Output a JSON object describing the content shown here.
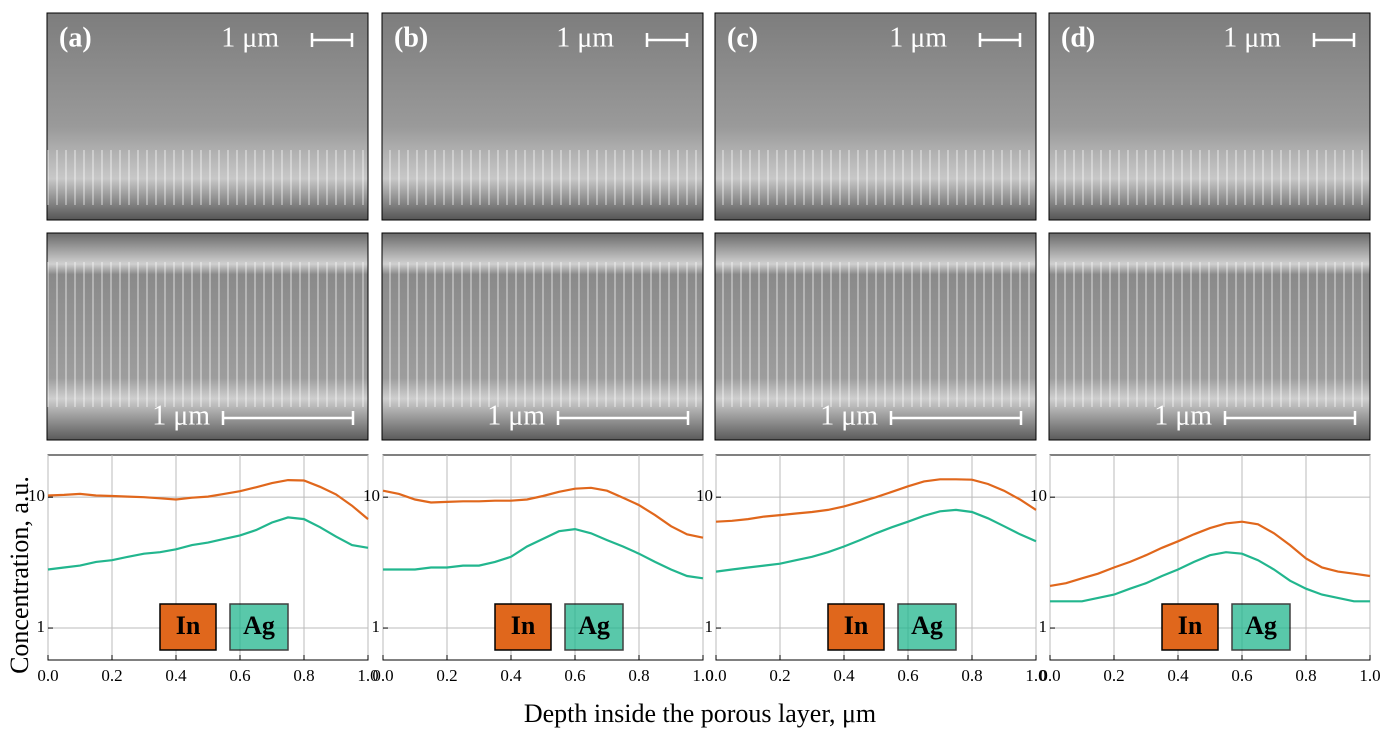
{
  "figure": {
    "ylabel": "Concentration, a.u.",
    "xlabel": "Depth inside the porous layer, μm"
  },
  "panels": [
    {
      "label": "(a)",
      "top_scale": "1 μm",
      "bottom_scale": "1 μm"
    },
    {
      "label": "(b)",
      "top_scale": "1 μm",
      "bottom_scale": "1 μm"
    },
    {
      "label": "(c)",
      "top_scale": "1 μm",
      "bottom_scale": "1 μm"
    },
    {
      "label": "(d)",
      "top_scale": "1 μm",
      "bottom_scale": "1 μm"
    }
  ],
  "chart_data": [
    {
      "type": "line",
      "log_y": true,
      "grid": true,
      "x": [
        0,
        0.05,
        0.1,
        0.15,
        0.2,
        0.25,
        0.3,
        0.35,
        0.4,
        0.45,
        0.5,
        0.55,
        0.6,
        0.65,
        0.7,
        0.75,
        0.8,
        0.85,
        0.9,
        0.95,
        1.0
      ],
      "xlim": [
        0,
        1
      ],
      "xticks": [
        {
          "value": 0,
          "label": "0.0"
        },
        {
          "value": 0.2,
          "label": "0.2"
        },
        {
          "value": 0.4,
          "label": "0.4"
        },
        {
          "value": 0.6,
          "label": "0.6"
        },
        {
          "value": 0.8,
          "label": "0.8"
        },
        {
          "value": 1,
          "label": "1.0"
        }
      ],
      "ylim": [
        0.57,
        21
      ],
      "yticks": [
        1,
        10
      ],
      "series": [
        {
          "name": "In",
          "color": "#e0671c",
          "values": [
            10.3,
            10.4,
            10.6,
            10.3,
            10.2,
            10.1,
            10.0,
            9.8,
            9.6,
            9.9,
            10.1,
            10.6,
            11.1,
            11.9,
            12.8,
            13.5,
            13.4,
            12.0,
            10.5,
            8.6,
            6.8
          ]
        },
        {
          "name": "Ag",
          "color": "#22b68e",
          "values": [
            2.8,
            2.9,
            3.0,
            3.2,
            3.3,
            3.5,
            3.7,
            3.8,
            4.0,
            4.3,
            4.5,
            4.8,
            5.1,
            5.6,
            6.4,
            7.0,
            6.8,
            5.9,
            5.0,
            4.3,
            4.1
          ]
        }
      ]
    },
    {
      "type": "line",
      "log_y": true,
      "grid": true,
      "x": [
        0,
        0.05,
        0.1,
        0.15,
        0.2,
        0.25,
        0.3,
        0.35,
        0.4,
        0.45,
        0.5,
        0.55,
        0.6,
        0.65,
        0.7,
        0.75,
        0.8,
        0.85,
        0.9,
        0.95,
        1.0
      ],
      "xlim": [
        0,
        1
      ],
      "xticks": [
        {
          "value": 0,
          "label": "0.0"
        },
        {
          "value": 0.2,
          "label": "0.2"
        },
        {
          "value": 0.4,
          "label": "0.4"
        },
        {
          "value": 0.6,
          "label": "0.6"
        },
        {
          "value": 0.8,
          "label": "0.8"
        },
        {
          "value": 1,
          "label": "1.0"
        }
      ],
      "ylim": [
        0.57,
        21
      ],
      "yticks": [
        1,
        10
      ],
      "series": [
        {
          "name": "In",
          "color": "#e0671c",
          "values": [
            11.2,
            10.6,
            9.6,
            9.1,
            9.2,
            9.3,
            9.3,
            9.4,
            9.4,
            9.6,
            10.2,
            11.0,
            11.6,
            11.8,
            11.2,
            9.9,
            8.7,
            7.3,
            6.0,
            5.2,
            4.9
          ]
        },
        {
          "name": "Ag",
          "color": "#22b68e",
          "values": [
            2.8,
            2.8,
            2.8,
            2.9,
            2.9,
            3.0,
            3.0,
            3.2,
            3.5,
            4.2,
            4.8,
            5.5,
            5.7,
            5.3,
            4.7,
            4.2,
            3.7,
            3.2,
            2.8,
            2.5,
            2.4
          ]
        }
      ]
    },
    {
      "type": "line",
      "log_y": true,
      "grid": true,
      "x": [
        0,
        0.05,
        0.1,
        0.15,
        0.2,
        0.25,
        0.3,
        0.35,
        0.4,
        0.45,
        0.5,
        0.55,
        0.6,
        0.65,
        0.7,
        0.75,
        0.8,
        0.85,
        0.9,
        0.95,
        1.0
      ],
      "xlim": [
        0,
        1
      ],
      "xticks": [
        {
          "value": 0,
          "label": "0.0"
        },
        {
          "value": 0.2,
          "label": "0.2"
        },
        {
          "value": 0.4,
          "label": "0.4"
        },
        {
          "value": 0.6,
          "label": "0.6"
        },
        {
          "value": 0.8,
          "label": "0.8"
        },
        {
          "value": 1,
          "label": "1.0"
        }
      ],
      "ylim": [
        0.57,
        21
      ],
      "yticks": [
        1,
        10
      ],
      "series": [
        {
          "name": "In",
          "color": "#e0671c",
          "values": [
            6.5,
            6.6,
            6.8,
            7.1,
            7.3,
            7.5,
            7.7,
            8.0,
            8.5,
            9.2,
            10.0,
            11.0,
            12.1,
            13.2,
            13.7,
            13.7,
            13.6,
            12.6,
            11.2,
            9.6,
            8.0
          ]
        },
        {
          "name": "Ag",
          "color": "#22b68e",
          "values": [
            2.7,
            2.8,
            2.9,
            3.0,
            3.1,
            3.3,
            3.5,
            3.8,
            4.2,
            4.7,
            5.3,
            5.9,
            6.5,
            7.2,
            7.8,
            8.0,
            7.7,
            6.9,
            6.0,
            5.2,
            4.6
          ]
        }
      ]
    },
    {
      "type": "line",
      "log_y": true,
      "grid": true,
      "x": [
        0,
        0.05,
        0.1,
        0.15,
        0.2,
        0.25,
        0.3,
        0.35,
        0.4,
        0.45,
        0.5,
        0.55,
        0.6,
        0.65,
        0.7,
        0.75,
        0.8,
        0.85,
        0.9,
        0.95,
        1.0
      ],
      "xlim": [
        0,
        1
      ],
      "xticks": [
        {
          "value": 0,
          "label": "0.0"
        },
        {
          "value": 0.2,
          "label": "0.2"
        },
        {
          "value": 0.4,
          "label": "0.4"
        },
        {
          "value": 0.6,
          "label": "0.6"
        },
        {
          "value": 0.8,
          "label": "0.8"
        },
        {
          "value": 1,
          "label": "1.0"
        }
      ],
      "ylim": [
        0.57,
        21
      ],
      "yticks": [
        1,
        10
      ],
      "series": [
        {
          "name": "In",
          "color": "#e0671c",
          "values": [
            2.1,
            2.2,
            2.4,
            2.6,
            2.9,
            3.2,
            3.6,
            4.1,
            4.6,
            5.2,
            5.8,
            6.3,
            6.5,
            6.2,
            5.3,
            4.3,
            3.4,
            2.9,
            2.7,
            2.6,
            2.5
          ]
        },
        {
          "name": "Ag",
          "color": "#22b68e",
          "values": [
            1.6,
            1.6,
            1.6,
            1.7,
            1.8,
            2.0,
            2.2,
            2.5,
            2.8,
            3.2,
            3.6,
            3.8,
            3.7,
            3.3,
            2.8,
            2.3,
            2.0,
            1.8,
            1.7,
            1.6,
            1.6
          ]
        }
      ]
    }
  ]
}
